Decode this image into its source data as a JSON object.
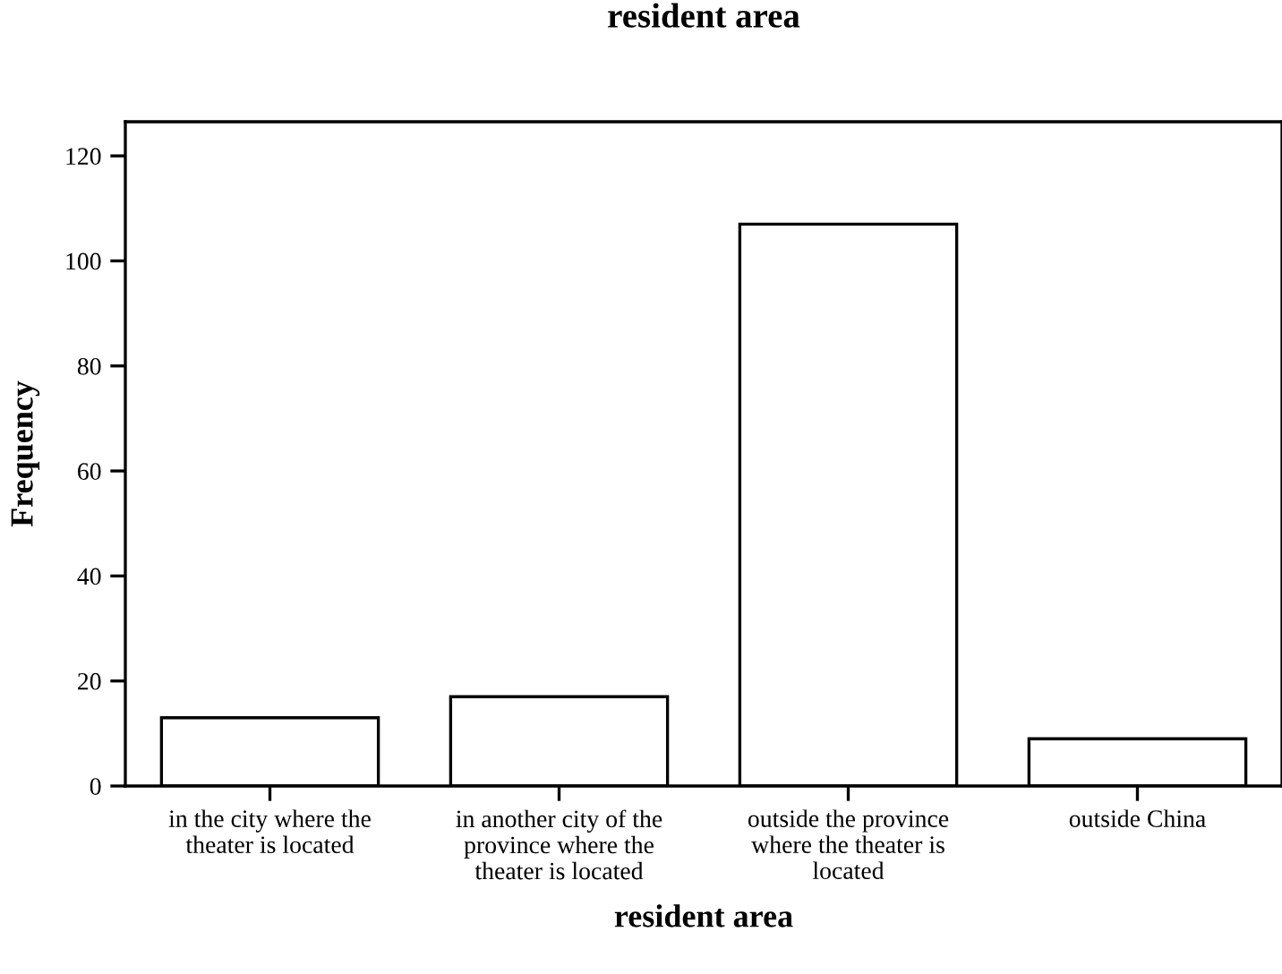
{
  "chart_data": {
    "type": "bar",
    "title": "resident area",
    "xlabel": "resident area",
    "ylabel": "Frequency",
    "categories": [
      "in the city where the\ntheater is located",
      "in another city of the\nprovince where the\ntheater is located",
      "outside the province\nwhere the theater is\nlocated",
      "outside China"
    ],
    "values": [
      13,
      17,
      107,
      9
    ],
    "color": "#ffffff",
    "ylim": [
      0,
      126.5
    ],
    "yticks": [
      0,
      20,
      40,
      60,
      80,
      100,
      120
    ],
    "grid": false,
    "legend": false
  }
}
